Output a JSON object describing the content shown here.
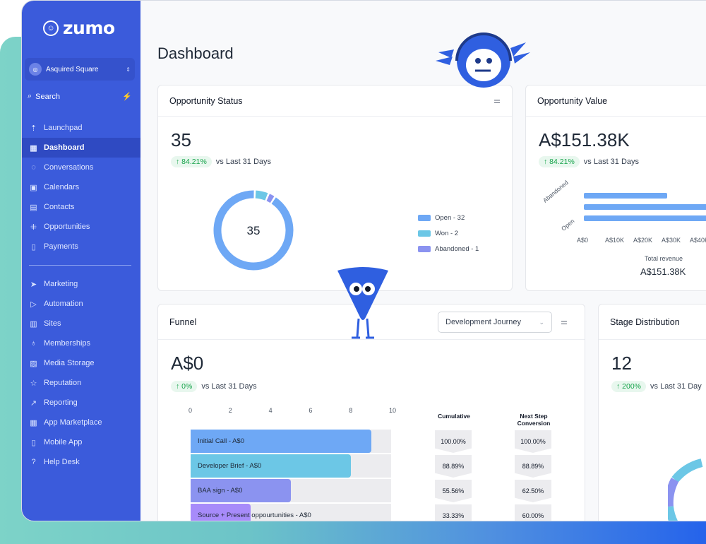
{
  "app": {
    "logo_text": "zumo"
  },
  "sidebar": {
    "account": "Asquired Square",
    "search_label": "Search",
    "items_top": [
      {
        "label": "Launchpad",
        "icon": "rocket-icon"
      },
      {
        "label": "Dashboard",
        "icon": "grid-icon",
        "active": true
      },
      {
        "label": "Conversations",
        "icon": "chat-icon"
      },
      {
        "label": "Calendars",
        "icon": "calendar-icon"
      },
      {
        "label": "Contacts",
        "icon": "contacts-icon"
      },
      {
        "label": "Opportunities",
        "icon": "opportunities-icon"
      },
      {
        "label": "Payments",
        "icon": "payments-icon"
      }
    ],
    "items_bottom": [
      {
        "label": "Marketing",
        "icon": "send-icon"
      },
      {
        "label": "Automation",
        "icon": "automation-icon"
      },
      {
        "label": "Sites",
        "icon": "sites-icon"
      },
      {
        "label": "Memberships",
        "icon": "membership-icon"
      },
      {
        "label": "Media Storage",
        "icon": "image-icon"
      },
      {
        "label": "Reputation",
        "icon": "star-icon"
      },
      {
        "label": "Reporting",
        "icon": "trend-icon"
      },
      {
        "label": "App Marketplace",
        "icon": "apps-icon"
      },
      {
        "label": "Mobile App",
        "icon": "mobile-icon"
      },
      {
        "label": "Help Desk",
        "icon": "help-icon"
      }
    ]
  },
  "page": {
    "title": "Dashboard"
  },
  "opportunity_status": {
    "title": "Opportunity Status",
    "total": "35",
    "delta": "↑ 84.21%",
    "delta_label": "vs Last 31 Days",
    "donut_center": "35",
    "legend": [
      {
        "label": "Open - 32",
        "value": 32,
        "color": "#6ea8f5"
      },
      {
        "label": "Won - 2",
        "value": 2,
        "color": "#6cc7e6"
      },
      {
        "label": "Abandoned - 1",
        "value": 1,
        "color": "#8b93f0"
      }
    ]
  },
  "opportunity_value": {
    "title": "Opportunity Value",
    "total": "A$151.38K",
    "delta": "↑ 84.21%",
    "delta_label": "vs Last 31 Days",
    "bar_labels": [
      "Abandoned",
      "Open"
    ],
    "x_ticks": [
      "A$0",
      "A$10K",
      "A$20K",
      "A$30K",
      "A$40K"
    ],
    "total_label": "Total revenue",
    "total_value": "A$151.38K"
  },
  "funnel": {
    "title": "Funnel",
    "dropdown": "Development Journey",
    "total": "A$0",
    "delta": "↑ 0%",
    "delta_label": "vs Last 31 Days",
    "ticks": [
      "0",
      "2",
      "4",
      "6",
      "8",
      "10"
    ],
    "col_cumulative": "Cumulative",
    "col_next": "Next Step Conversion",
    "stages": [
      {
        "label": "Initial Call - A$0",
        "value": 9,
        "color": "#6ea8f5",
        "cumulative": "100.00%",
        "next": "100.00%"
      },
      {
        "label": "Developer Brief - A$0",
        "value": 8,
        "color": "#6cc7e6",
        "cumulative": "88.89%",
        "next": "88.89%"
      },
      {
        "label": "BAA sign - A$0",
        "value": 5,
        "color": "#8b93f0",
        "cumulative": "55.56%",
        "next": "62.50%"
      },
      {
        "label": "Source + Present oppourtunities - A$0",
        "value": 3,
        "color": "#a78bfa",
        "cumulative": "33.33%",
        "next": "60.00%"
      }
    ]
  },
  "stage_distribution": {
    "title": "Stage Distribution",
    "total": "12",
    "delta": "↑ 200%",
    "delta_label": "vs Last 31 Day"
  }
}
